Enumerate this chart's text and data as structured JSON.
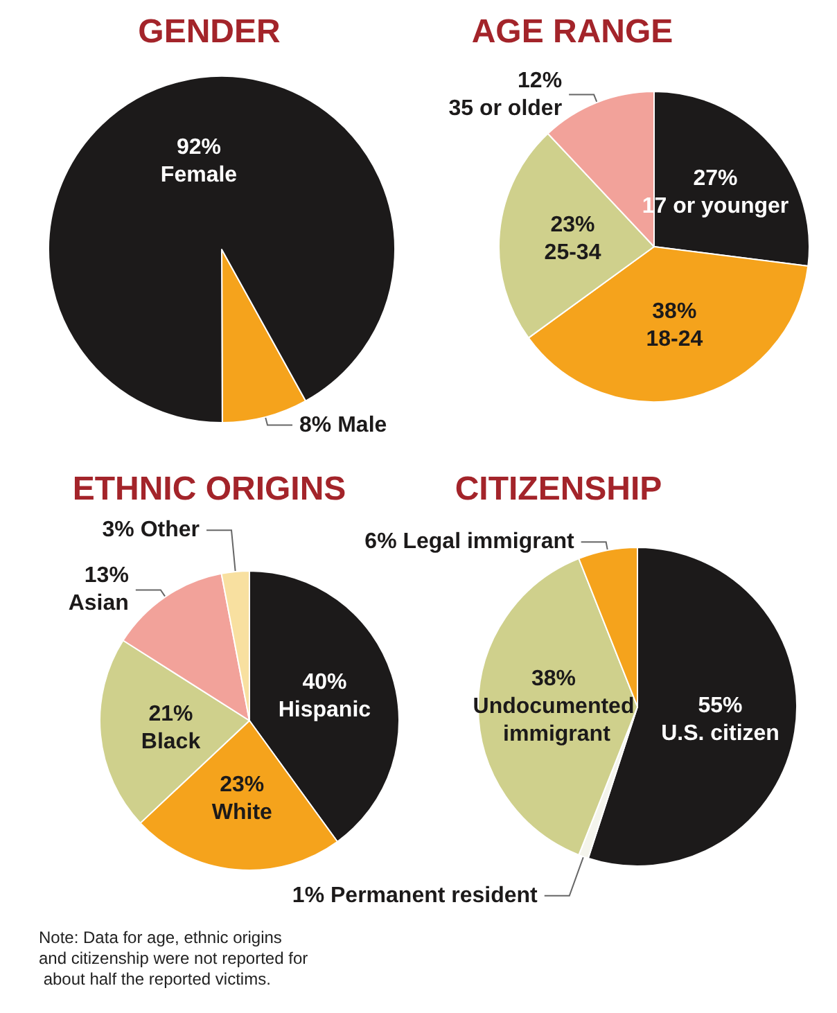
{
  "chart_data": [
    {
      "type": "pie",
      "title": "GENDER",
      "categories": [
        "Male",
        "Female"
      ],
      "values": [
        8,
        92
      ],
      "value_labels": [
        "8%",
        "92%"
      ],
      "colors": [
        "#f5a31c",
        "#1c1a1a"
      ]
    },
    {
      "type": "pie",
      "title": "AGE RANGE",
      "categories": [
        "17 or younger",
        "18-24",
        "25-34",
        "35 or older"
      ],
      "values": [
        27,
        38,
        23,
        12
      ],
      "value_labels": [
        "27%",
        "38%",
        "23%",
        "12%"
      ],
      "colors": [
        "#1c1a1a",
        "#f5a31c",
        "#cfd08c",
        "#f2a29a"
      ]
    },
    {
      "type": "pie",
      "title": "ETHNIC ORIGINS",
      "categories": [
        "Hispanic",
        "White",
        "Black",
        "Asian",
        "Other"
      ],
      "values": [
        40,
        23,
        21,
        13,
        3
      ],
      "value_labels": [
        "40%",
        "23%",
        "21%",
        "13%",
        "3%"
      ],
      "colors": [
        "#1c1a1a",
        "#f5a31c",
        "#cfd08c",
        "#f2a29a",
        "#f8e0a0"
      ],
      "annotations": [
        "Note: Data for age, ethnic origins and citizenship were not reported for about half the reported victims."
      ]
    },
    {
      "type": "pie",
      "title": "CITIZENSHIP",
      "categories": [
        "U.S. citizen",
        "Permanent resident",
        "Undocumented immigrant",
        "Legal immigrant"
      ],
      "values": [
        55,
        1,
        38,
        6
      ],
      "value_labels": [
        "55%",
        "1%",
        "38%",
        "6%"
      ],
      "colors": [
        "#1c1a1a",
        "#f4f4ec",
        "#cfd08c",
        "#f5a31c"
      ]
    }
  ]
}
